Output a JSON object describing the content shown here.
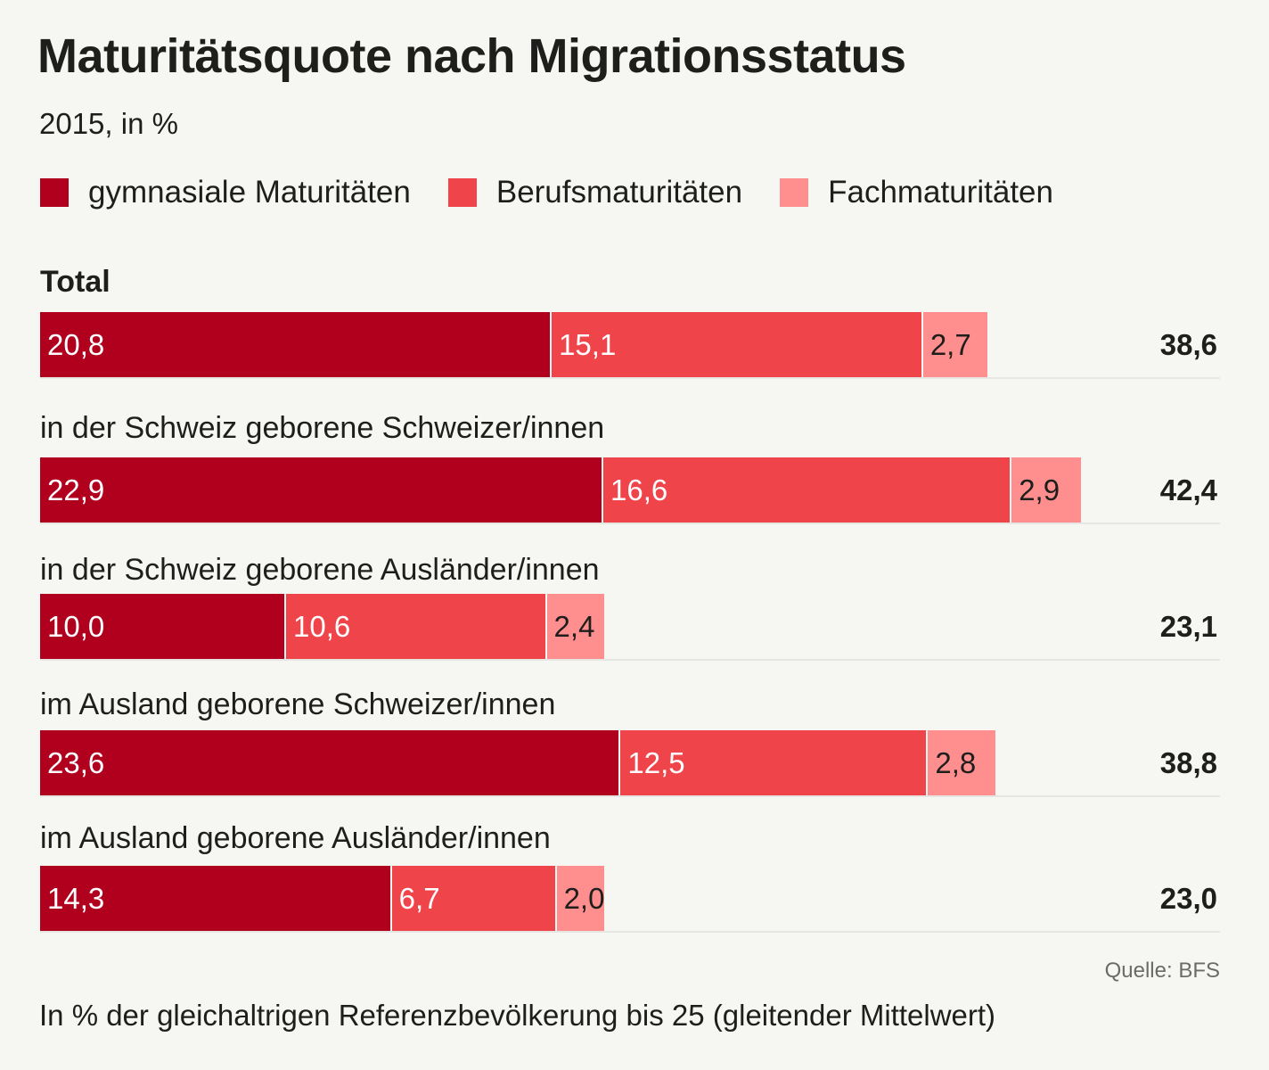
{
  "title": "Maturitätsquote nach Migrationsstatus",
  "subtitle": "2015, in %",
  "source": "Quelle: BFS",
  "note": "In % der gleichaltrigen Referenzbevölkerung bis 25 (gleitender Mittelwert)",
  "chart_data": {
    "type": "bar",
    "orientation": "horizontal",
    "stacked": true,
    "title": "Maturitätsquote nach Migrationsstatus",
    "subtitle": "2015, in %",
    "legend_position": "top",
    "categories": [
      "Total",
      "in der Schweiz geborene Schweizer/innen",
      "in der Schweiz geborene Ausländer/innen",
      "im Ausland geborene Schweizer/innen",
      "im Ausland geborene Ausländer/innen"
    ],
    "series": [
      {
        "name": "gymnasiale Maturitäten",
        "color": "#b0001e",
        "text_color": "#ffffff",
        "values": [
          "20,8",
          "22,9",
          "10,0",
          "23,6",
          "14,3"
        ]
      },
      {
        "name": "Berufsmaturitäten",
        "color": "#f0444b",
        "text_color": "#ffffff",
        "values": [
          "15,1",
          "16,6",
          "10,6",
          "12,5",
          "6,7"
        ]
      },
      {
        "name": "Fachmaturitäten",
        "color": "#ff8f8f",
        "text_color": "#1e1e1c",
        "values": [
          "2,7",
          "2,9",
          "2,4",
          "2,8",
          "2,0"
        ]
      }
    ],
    "totals": [
      "38,6",
      "42,4",
      "23,1",
      "38,8",
      "23,0"
    ]
  }
}
